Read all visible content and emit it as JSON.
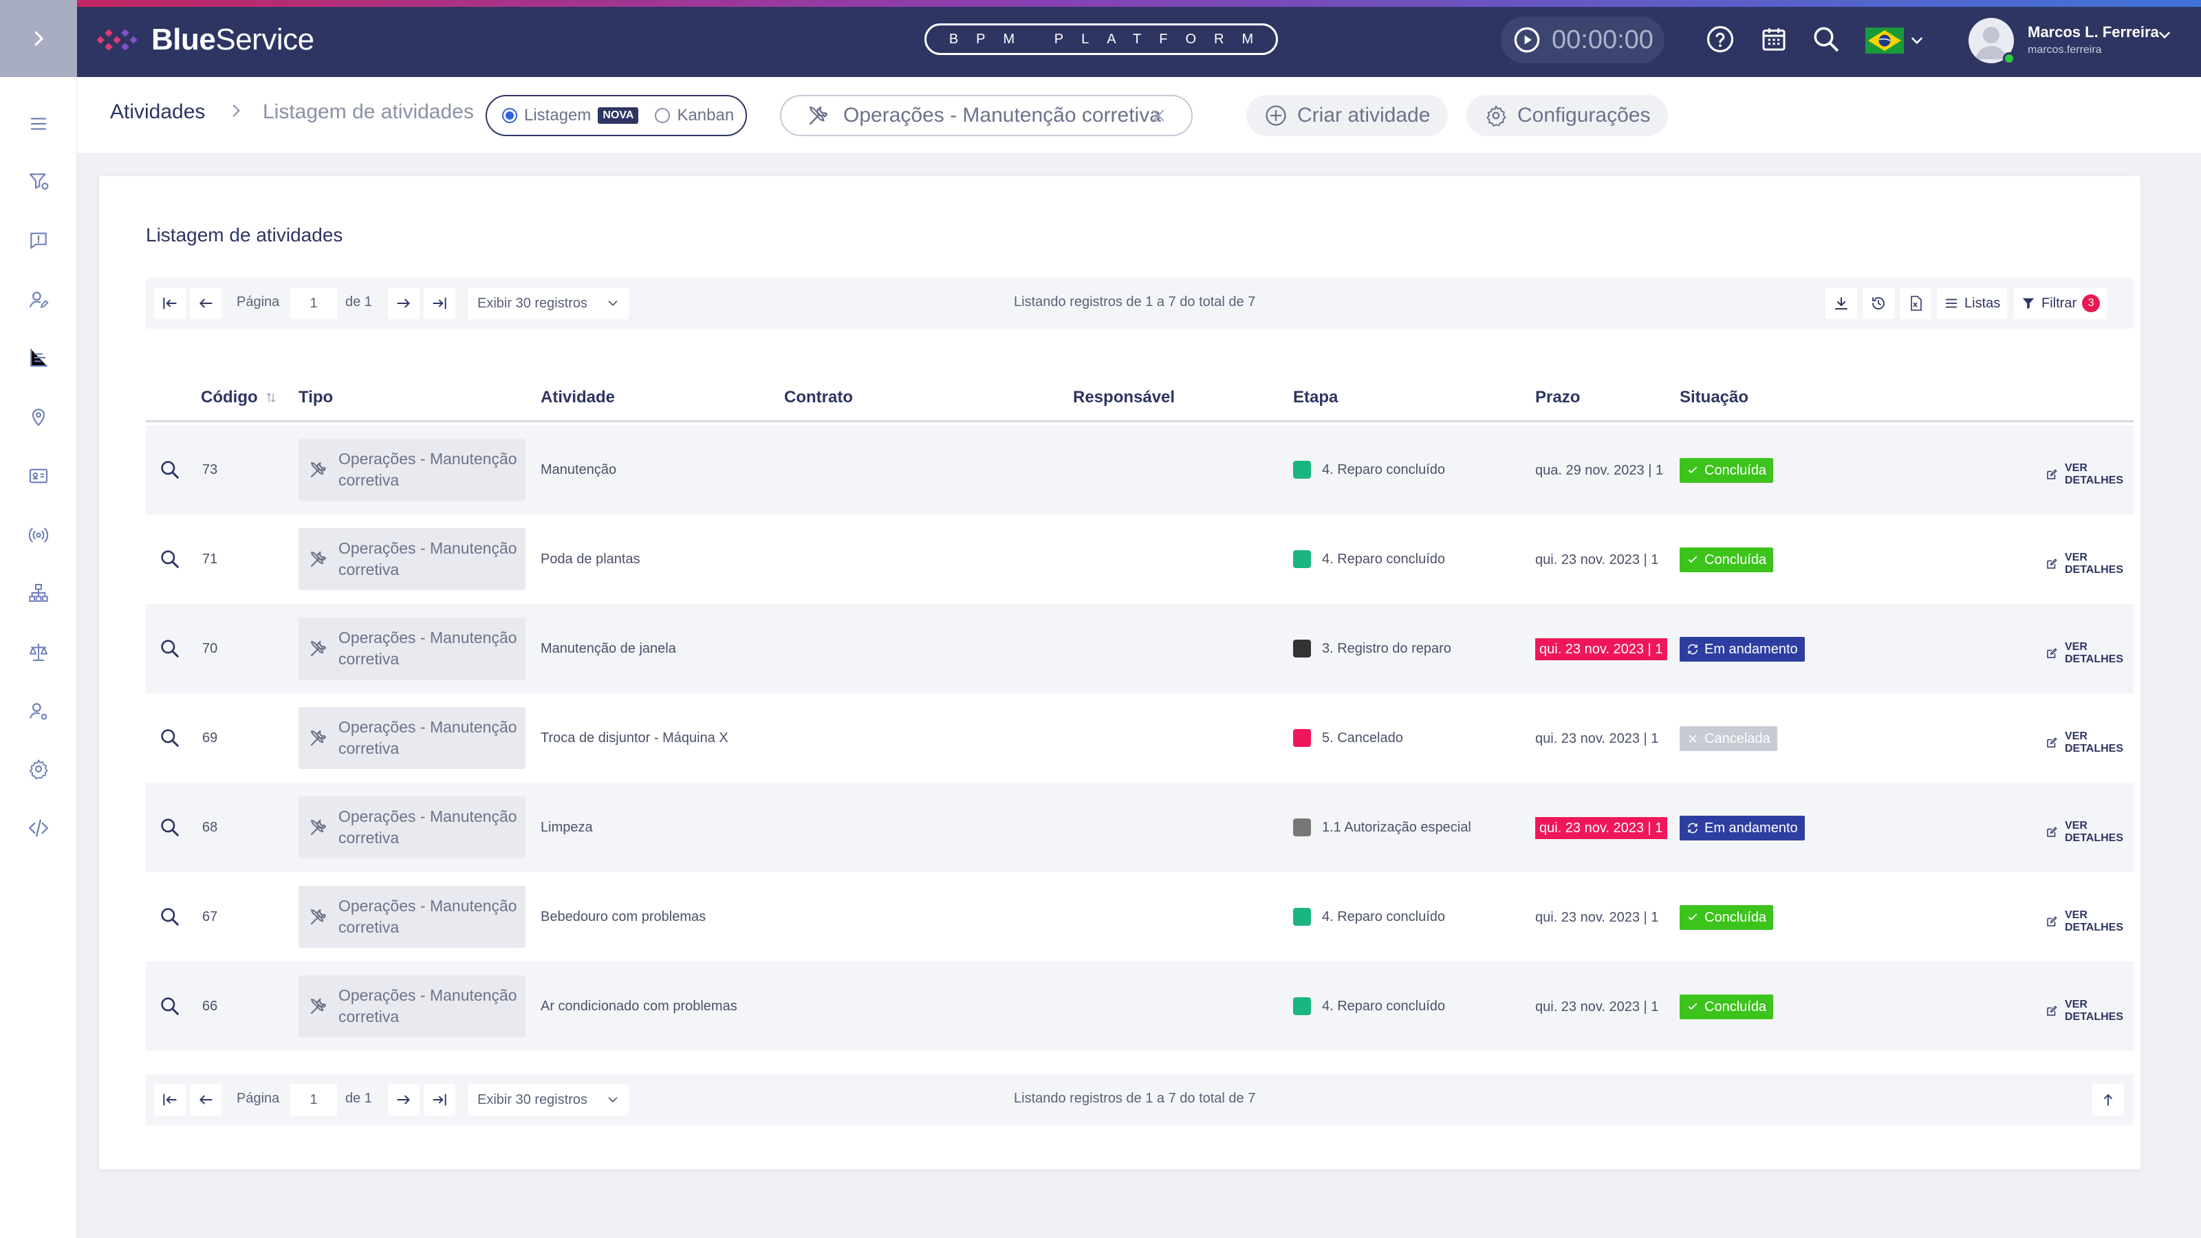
{
  "app": {
    "brand_bold": "Blue",
    "brand_light": "Service",
    "platform_label": "BPM PLATFORM",
    "timer": "00:00:00"
  },
  "user": {
    "name": "Marcos L. Ferreira",
    "login": "marcos.ferreira"
  },
  "breadcrumb": {
    "root": "Atividades",
    "current": "Listagem de atividades"
  },
  "view_toggle": {
    "list_label": "Listagem",
    "new_badge": "NOVA",
    "kanban_label": "Kanban",
    "selected": "Listagem"
  },
  "filter_chip": {
    "label": "Operações - Manutenção corretiva"
  },
  "actions": {
    "create": "Criar atividade",
    "settings": "Configurações"
  },
  "card": {
    "title": "Listagem de atividades"
  },
  "pager": {
    "page_label": "Página",
    "page_value": "1",
    "of_label": "de 1",
    "per_page": "Exibir 30 registros",
    "status": "Listando registros de 1 a 7 do total de 7",
    "lists_label": "Listas",
    "filter_label": "Filtrar",
    "filter_count": "3"
  },
  "columns": {
    "code": "Código",
    "type": "Tipo",
    "activity": "Atividade",
    "contract": "Contrato",
    "owner": "Responsável",
    "stage": "Etapa",
    "due": "Prazo",
    "status": "Situação"
  },
  "colors": {
    "header_bg": "#2e3562",
    "accent": "#2f63d8",
    "done": "#3cc31c",
    "in_progress": "#2e3ea0",
    "cancelled": "#c8cad4",
    "late": "#f0165a"
  },
  "details_label": "VER DETALHES",
  "rows": [
    {
      "code": "73",
      "type_line1": "Operações - Manutenção",
      "type_line2": "corretiva",
      "activity": "Manutenção",
      "stage": "4. Reparo concluído",
      "stage_color": "#1bb580",
      "due": "qua. 29 nov. 2023 | 1",
      "late": false,
      "status": "Concluída",
      "status_kind": "done"
    },
    {
      "code": "71",
      "type_line1": "Operações - Manutenção",
      "type_line2": "corretiva",
      "activity": "Poda de plantas",
      "stage": "4. Reparo concluído",
      "stage_color": "#1bb580",
      "due": "qui. 23 nov. 2023 | 1",
      "late": false,
      "status": "Concluída",
      "status_kind": "done"
    },
    {
      "code": "70",
      "type_line1": "Operações - Manutenção",
      "type_line2": "corretiva",
      "activity": "Manutenção de janela",
      "stage": "3. Registro do reparo",
      "stage_color": "#333333",
      "due": "qui. 23 nov. 2023 | 1",
      "late": true,
      "status": "Em andamento",
      "status_kind": "in_progress"
    },
    {
      "code": "69",
      "type_line1": "Operações - Manutenção",
      "type_line2": "corretiva",
      "activity": "Troca de disjuntor - Máquina X",
      "stage": "5. Cancelado",
      "stage_color": "#f0165a",
      "due": "qui. 23 nov. 2023 | 1",
      "late": false,
      "status": "Cancelada",
      "status_kind": "cancelled"
    },
    {
      "code": "68",
      "type_line1": "Operações - Manutenção",
      "type_line2": "corretiva",
      "activity": "Limpeza",
      "stage": "1.1 Autorização especial",
      "stage_color": "#777777",
      "due": "qui. 23 nov. 2023 | 1",
      "late": true,
      "status": "Em andamento",
      "status_kind": "in_progress"
    },
    {
      "code": "67",
      "type_line1": "Operações - Manutenção",
      "type_line2": "corretiva",
      "activity": "Bebedouro com problemas",
      "stage": "4. Reparo concluído",
      "stage_color": "#1bb580",
      "due": "qui. 23 nov. 2023 | 1",
      "late": false,
      "status": "Concluída",
      "status_kind": "done"
    },
    {
      "code": "66",
      "type_line1": "Operações - Manutenção",
      "type_line2": "corretiva",
      "activity": "Ar condicionado com problemas",
      "stage": "4. Reparo concluído",
      "stage_color": "#1bb580",
      "due": "qui. 23 nov. 2023 | 1",
      "late": false,
      "status": "Concluída",
      "status_kind": "done"
    }
  ]
}
